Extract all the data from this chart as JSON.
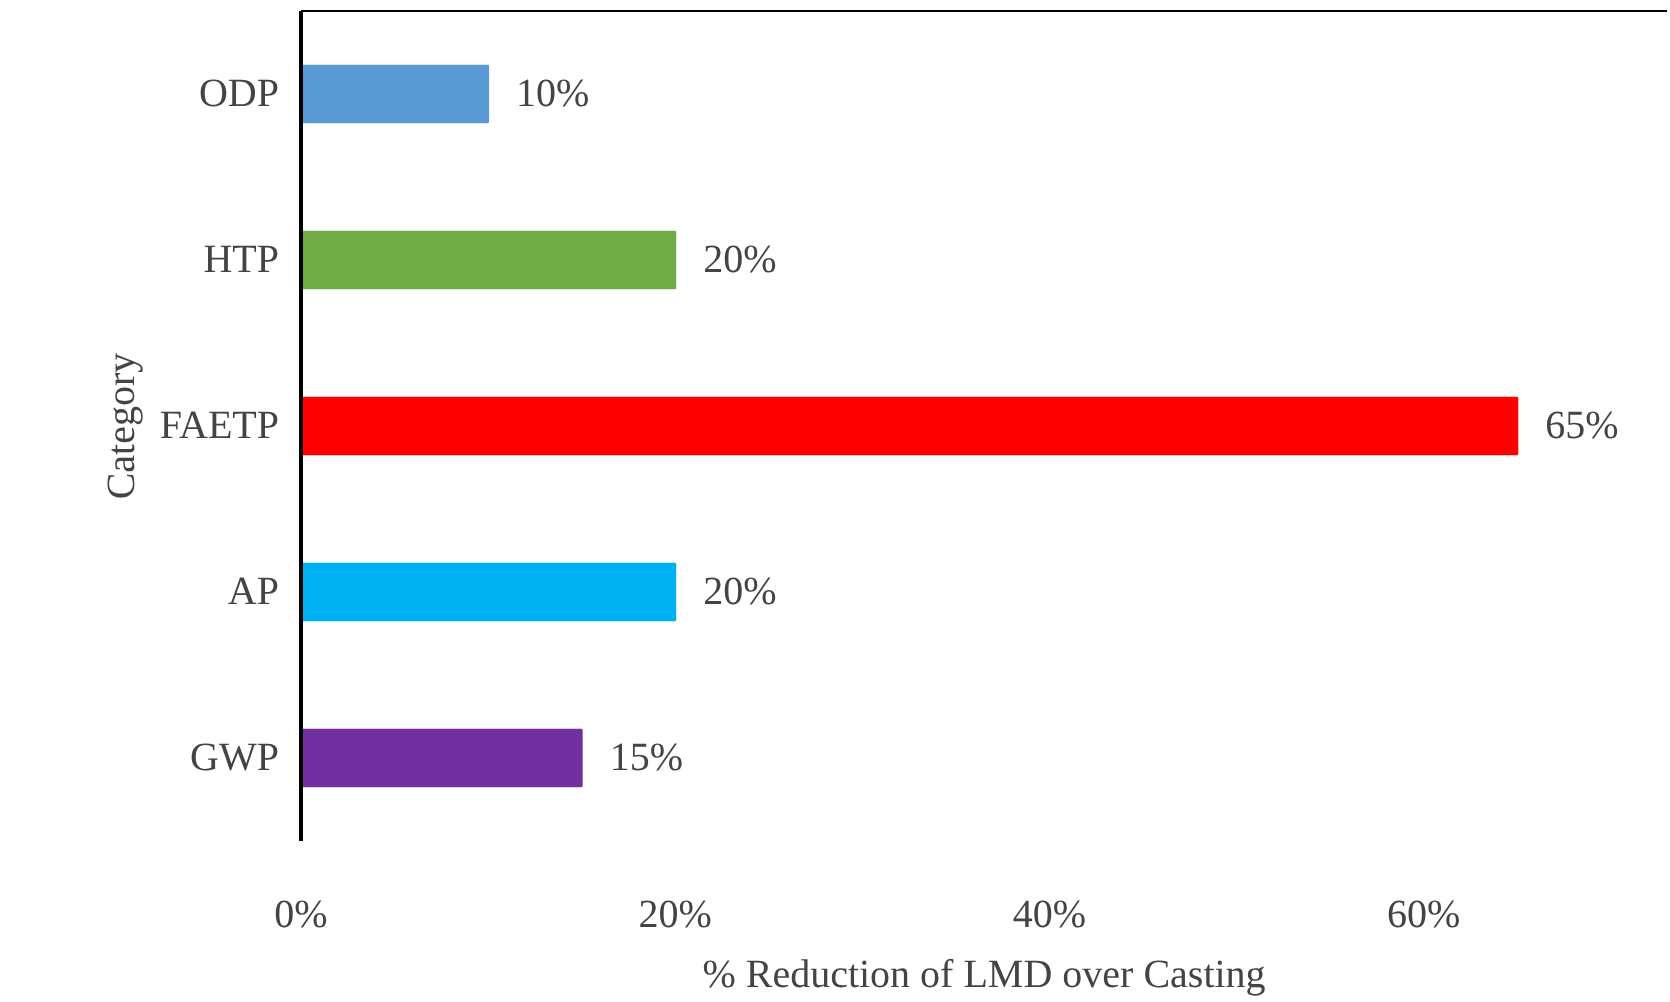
{
  "chart_data": {
    "type": "bar",
    "orientation": "horizontal",
    "xlabel": "% Reduction of LMD over Casting",
    "ylabel": "Category",
    "categories": [
      "ODP",
      "HTP",
      "FAETP",
      "AP",
      "GWP"
    ],
    "values": [
      10,
      20,
      65,
      20,
      15
    ],
    "colors": [
      "#5b9bd5",
      "#70ad47",
      "#ff0000",
      "#00b0f0",
      "#7030a0"
    ],
    "value_labels": [
      "10%",
      "20%",
      "65%",
      "20%",
      "15%"
    ],
    "xlim": [
      0,
      73
    ],
    "xticks": [
      {
        "value": 0,
        "label": "0%"
      },
      {
        "value": 20,
        "label": "20%"
      },
      {
        "value": 40,
        "label": "40%"
      },
      {
        "value": 60,
        "label": "60%"
      }
    ],
    "grid": false
  }
}
